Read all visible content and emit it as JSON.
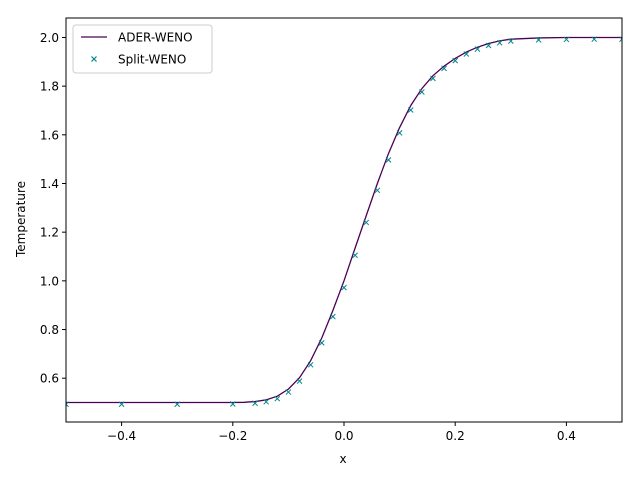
{
  "chart_data": {
    "type": "line",
    "title": "",
    "xlabel": "x",
    "ylabel": "Temperature",
    "xlim": [
      -0.5,
      0.5
    ],
    "ylim": [
      0.42,
      2.08
    ],
    "xticks": [
      -0.4,
      -0.2,
      0.0,
      0.2,
      0.4
    ],
    "xtick_labels": [
      "−0.4",
      "−0.2",
      "0.0",
      "0.2",
      "0.4"
    ],
    "yticks": [
      0.6,
      0.8,
      1.0,
      1.2,
      1.4,
      1.6,
      1.8,
      2.0
    ],
    "ytick_labels": [
      "0.6",
      "0.8",
      "1.0",
      "1.2",
      "1.4",
      "1.6",
      "1.8",
      "2.0"
    ],
    "grid": false,
    "legend_position": "upper-left",
    "series": [
      {
        "name": "ADER-WENO",
        "style": "line",
        "color": "#4b0055",
        "x": [
          -0.5,
          -0.45,
          -0.4,
          -0.35,
          -0.3,
          -0.25,
          -0.2,
          -0.18,
          -0.16,
          -0.14,
          -0.12,
          -0.1,
          -0.08,
          -0.06,
          -0.04,
          -0.02,
          0.0,
          0.02,
          0.04,
          0.06,
          0.08,
          0.1,
          0.12,
          0.14,
          0.16,
          0.18,
          0.2,
          0.22,
          0.24,
          0.26,
          0.28,
          0.3,
          0.35,
          0.4,
          0.45,
          0.5
        ],
        "y": [
          0.5,
          0.5,
          0.5,
          0.5,
          0.5,
          0.5,
          0.5,
          0.501,
          0.504,
          0.511,
          0.526,
          0.555,
          0.602,
          0.672,
          0.765,
          0.878,
          1.0,
          1.135,
          1.268,
          1.4,
          1.523,
          1.63,
          1.72,
          1.79,
          1.843,
          1.882,
          1.914,
          1.94,
          1.96,
          1.975,
          1.986,
          1.993,
          1.998,
          2.0,
          2.0,
          2.0
        ]
      },
      {
        "name": "Split-WENO",
        "style": "markers",
        "marker": "x",
        "color": "#00868b",
        "x": [
          -0.5,
          -0.4,
          -0.3,
          -0.2,
          -0.16,
          -0.14,
          -0.12,
          -0.1,
          -0.08,
          -0.06,
          -0.04,
          -0.02,
          0.0,
          0.02,
          0.04,
          0.06,
          0.08,
          0.1,
          0.12,
          0.14,
          0.16,
          0.18,
          0.2,
          0.22,
          0.24,
          0.26,
          0.28,
          0.3,
          0.35,
          0.4,
          0.45,
          0.5
        ],
        "y": [
          0.493,
          0.493,
          0.493,
          0.494,
          0.497,
          0.503,
          0.516,
          0.543,
          0.588,
          0.655,
          0.745,
          0.853,
          0.972,
          1.105,
          1.24,
          1.372,
          1.497,
          1.608,
          1.702,
          1.776,
          1.832,
          1.873,
          1.905,
          1.932,
          1.952,
          1.967,
          1.978,
          1.985,
          1.99,
          1.992,
          1.993,
          1.993
        ]
      }
    ]
  }
}
